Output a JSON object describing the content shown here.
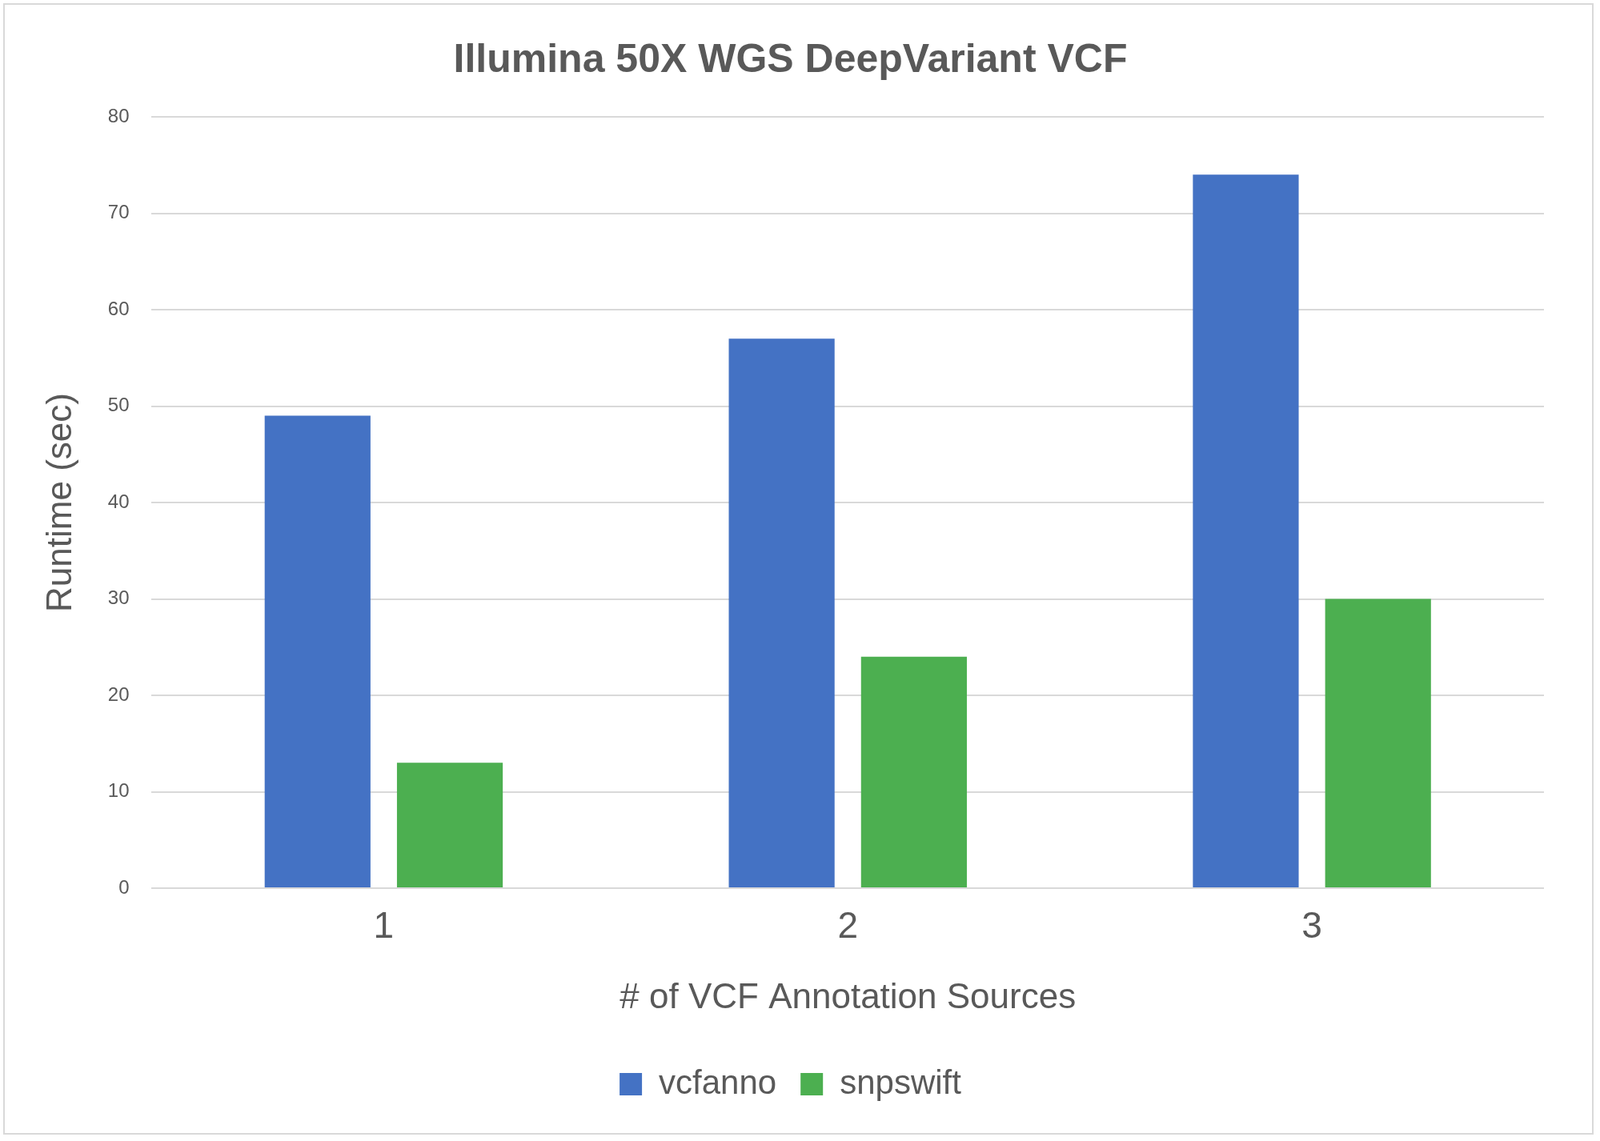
{
  "chart_data": {
    "type": "bar",
    "title": "Illumina 50X WGS DeepVariant VCF",
    "x_label": "# of VCF Annotation Sources",
    "y_label": "Runtime (sec)",
    "categories": [
      "1",
      "2",
      "3"
    ],
    "series": [
      {
        "name": "vcfanno",
        "color": "#4472c4",
        "values": [
          49,
          57,
          74
        ]
      },
      {
        "name": "snpswift",
        "color": "#4caf50",
        "values": [
          13,
          24,
          30
        ]
      }
    ],
    "ylim": [
      0,
      80
    ],
    "yticks": [
      0,
      10,
      20,
      30,
      40,
      50,
      60,
      70,
      80
    ],
    "grid": true,
    "legend": "bottom"
  }
}
